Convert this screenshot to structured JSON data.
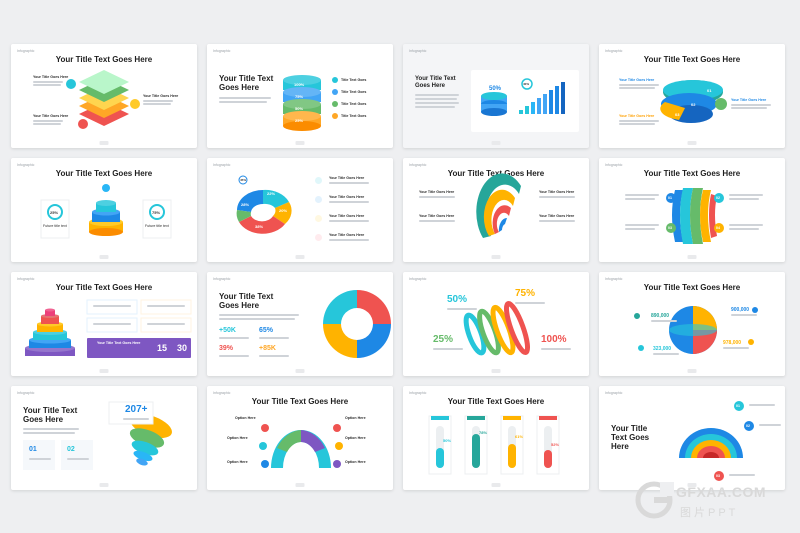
{
  "slides": [
    {
      "tag": "Infographic",
      "title": "Your Title Text Goes Here",
      "labels": [
        "Your Title Goes Here",
        "Your Title Goes Here",
        "Your Title Goes Here"
      ]
    },
    {
      "tag": "Infographic",
      "title_lines": [
        "Your Title Text",
        "Goes Here"
      ],
      "values": [
        "100%",
        "75%",
        "50%",
        "25%"
      ],
      "items": [
        "Title Text Goes",
        "Title Text Goes",
        "Title Text Goes",
        "Title Text Goes"
      ]
    },
    {
      "tag": "Infographic",
      "title_lines": [
        "Your Title Text",
        "Goes Here"
      ],
      "values": [
        "50%",
        "40%"
      ]
    },
    {
      "tag": "Infographic",
      "title": "Your Title Text Goes Here",
      "labels": [
        "Your Title Goes Here",
        "Your Title Goes Here",
        "Your Title Goes Here"
      ],
      "values": [
        "01",
        "02",
        "03"
      ]
    },
    {
      "tag": "Infographic",
      "title": "Your Title Text Goes Here",
      "values": [
        "25%",
        "75%"
      ],
      "labels": [
        "Future title text",
        "Future title text"
      ]
    },
    {
      "tag": "Infographic",
      "values": [
        "45%",
        "22%",
        "20%",
        "28%",
        "38%"
      ],
      "items": [
        "Your Title Goes Here",
        "Your Title Goes Here",
        "Your Title Goes Here",
        "Your Title Goes Here"
      ]
    },
    {
      "tag": "Infographic",
      "title": "Your Title Text Goes Here",
      "labels": [
        "Your Title Goes Here",
        "Your Title Goes Here",
        "Your Title Goes Here",
        "Your Title Goes Here"
      ]
    },
    {
      "tag": "Infographic",
      "title": "Your Title Text Goes Here",
      "values": [
        "01",
        "02",
        "03",
        "04"
      ]
    },
    {
      "tag": "Infographic",
      "title": "Your Title Text Goes Here",
      "banner": "Your Title Text Goes Here",
      "values": [
        "15",
        "30"
      ]
    },
    {
      "tag": "Infographic",
      "title_lines": [
        "Your Title Text",
        "Goes Here"
      ],
      "values": [
        "+50K",
        "65%",
        "39%",
        "+85K"
      ]
    },
    {
      "tag": "Infographic",
      "values": [
        "50%",
        "75%",
        "25%",
        "100%"
      ]
    },
    {
      "tag": "Infographic",
      "title": "Your Title Text Goes Here",
      "values": [
        "890,000",
        "900,000",
        "323,000",
        "978,000"
      ]
    },
    {
      "tag": "Infographic",
      "title_lines": [
        "Your Title Text",
        "Goes Here"
      ],
      "values": [
        "207+",
        "01",
        "02"
      ]
    },
    {
      "tag": "Infographic",
      "title": "Your Title Text Goes Here",
      "labels": [
        "Option Here",
        "Option Here",
        "Option Here",
        "Option Here",
        "Option Here",
        "Option Here"
      ]
    },
    {
      "tag": "Infographic",
      "title": "Your Title Text Goes Here",
      "values": [
        "50%",
        "78%",
        "61%",
        "52%"
      ]
    },
    {
      "tag": "Infographic",
      "title_lines": [
        "Your Title",
        "Text Goes",
        "Here"
      ],
      "values": [
        "01",
        "02",
        "03"
      ]
    }
  ],
  "watermark": {
    "text": "GFXAA.COM",
    "sub": "图片PPT"
  }
}
